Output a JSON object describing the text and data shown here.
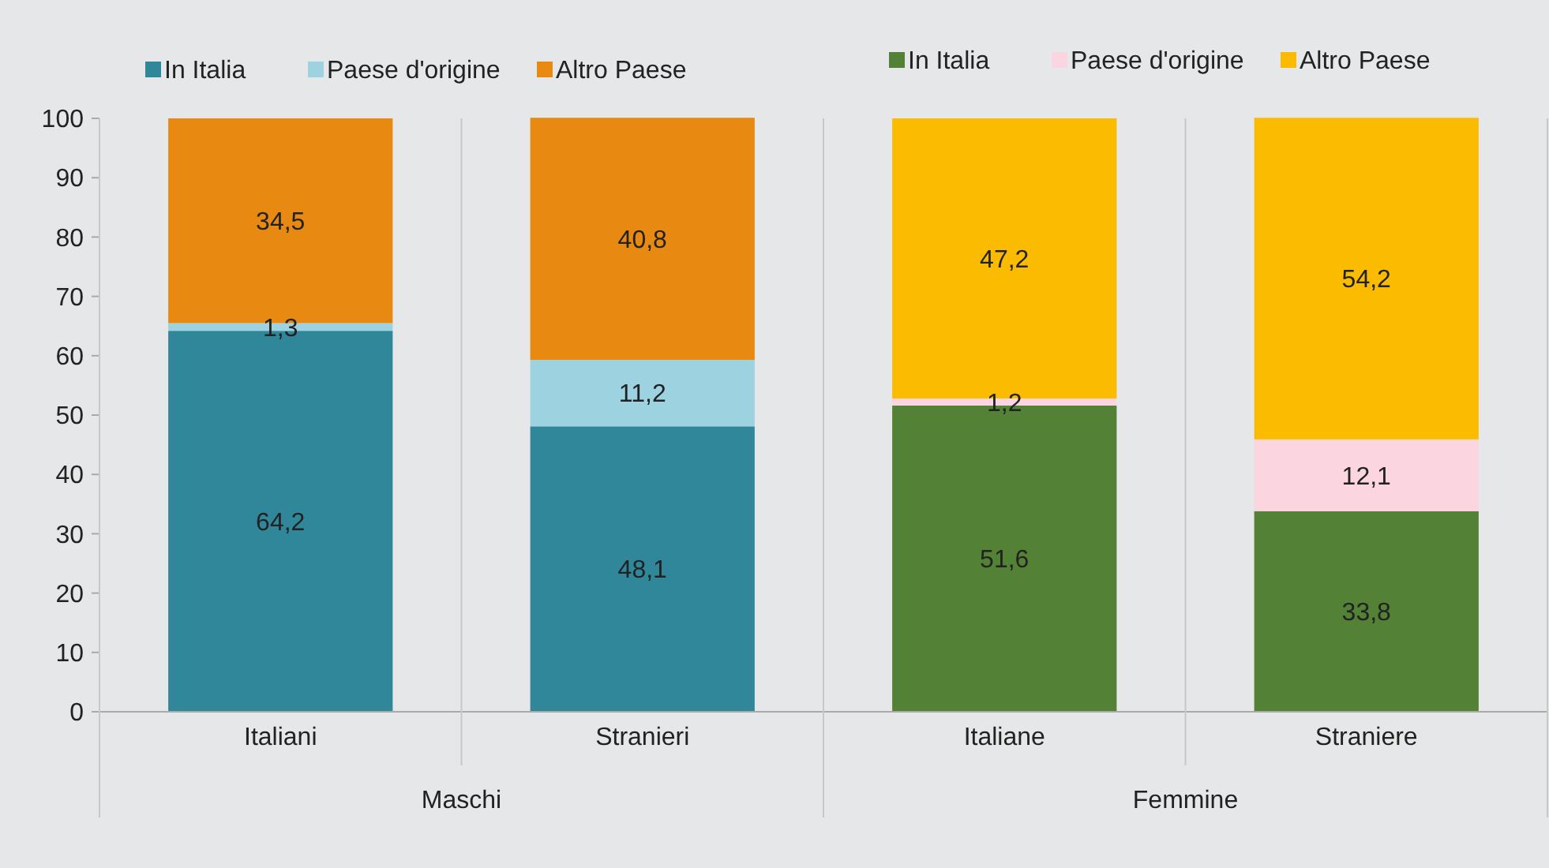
{
  "chart_data": {
    "type": "bar",
    "stacked": true,
    "categories": [
      "Italiani",
      "Stranieri",
      "Italiane",
      "Straniere"
    ],
    "series": [
      {
        "name": "In Italia",
        "color": "#31879a",
        "values": [
          64.2,
          48.1,
          null,
          null
        ],
        "value_labels": [
          "64,2",
          "48,1",
          null,
          null
        ]
      },
      {
        "name": "Paese d'origine",
        "color": "#9dd3e0",
        "values": [
          1.3,
          11.2,
          null,
          null
        ],
        "value_labels": [
          "1,3",
          "11,2",
          null,
          null
        ]
      },
      {
        "name": "Altro Paese",
        "color": "#e88a12",
        "values": [
          34.5,
          40.8,
          null,
          null
        ],
        "value_labels": [
          "34,5",
          "40,8",
          null,
          null
        ]
      },
      {
        "name": "In Italia",
        "color": "#538135",
        "values": [
          null,
          null,
          51.6,
          33.8
        ],
        "value_labels": [
          null,
          null,
          "51,6",
          "33,8"
        ]
      },
      {
        "name": "Paese d'origine",
        "color": "#fbd5e0",
        "values": [
          null,
          null,
          1.2,
          12.1
        ],
        "value_labels": [
          null,
          null,
          "1,2",
          "12,1"
        ]
      },
      {
        "name": "Altro Paese",
        "color": "#fbbb00",
        "values": [
          null,
          null,
          47.2,
          54.2
        ],
        "value_labels": [
          null,
          null,
          "47,2",
          "54,2"
        ]
      }
    ],
    "ylim": [
      0,
      100
    ],
    "yticks": [
      0,
      10,
      20,
      30,
      40,
      50,
      60,
      70,
      80,
      90,
      100
    ],
    "legend": "top",
    "annotations": [
      "Maschi",
      "Femmine"
    ]
  }
}
